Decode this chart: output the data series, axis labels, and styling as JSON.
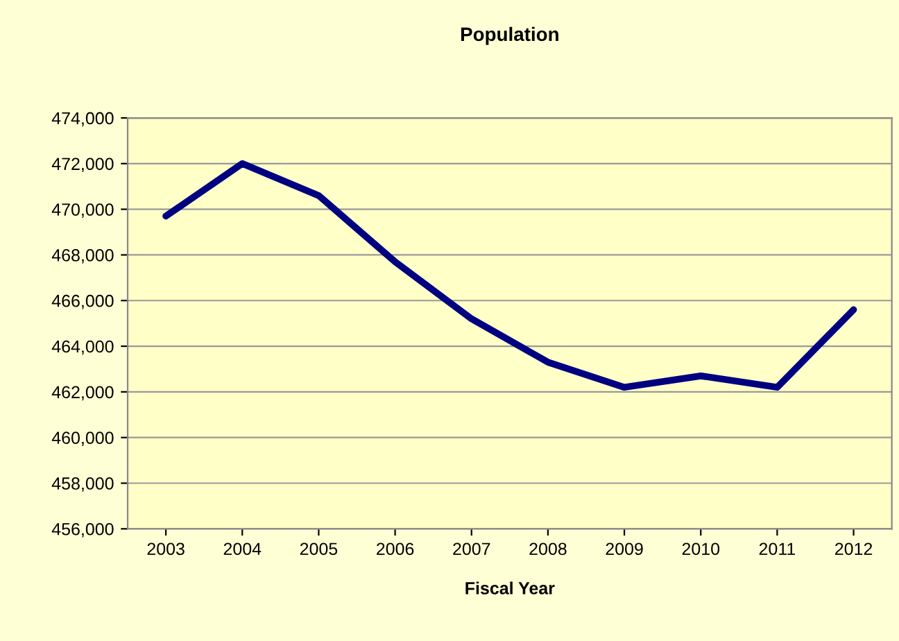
{
  "chart_data": {
    "type": "line",
    "title": "Population",
    "xlabel": "Fiscal Year",
    "categories": [
      "2003",
      "2004",
      "2005",
      "2006",
      "2007",
      "2008",
      "2009",
      "2010",
      "2011",
      "2012"
    ],
    "series": [
      {
        "color": "#000080",
        "values": [
          469700,
          472000,
          470600,
          467700,
          465200,
          463300,
          462200,
          462700,
          462200,
          465600
        ]
      }
    ],
    "ylim": [
      456000,
      474000
    ],
    "yticks": [
      {
        "value": 456000,
        "label": "456,000"
      },
      {
        "value": 458000,
        "label": "458,000"
      },
      {
        "value": 460000,
        "label": "460,000"
      },
      {
        "value": 462000,
        "label": "462,000"
      },
      {
        "value": 464000,
        "label": "464,000"
      },
      {
        "value": 466000,
        "label": "466,000"
      },
      {
        "value": 468000,
        "label": "468,000"
      },
      {
        "value": 470000,
        "label": "470,000"
      },
      {
        "value": 472000,
        "label": "472,000"
      },
      {
        "value": 474000,
        "label": "474,000"
      }
    ],
    "grid": "y",
    "legend": false,
    "marker": "none",
    "line_style": "solid"
  }
}
